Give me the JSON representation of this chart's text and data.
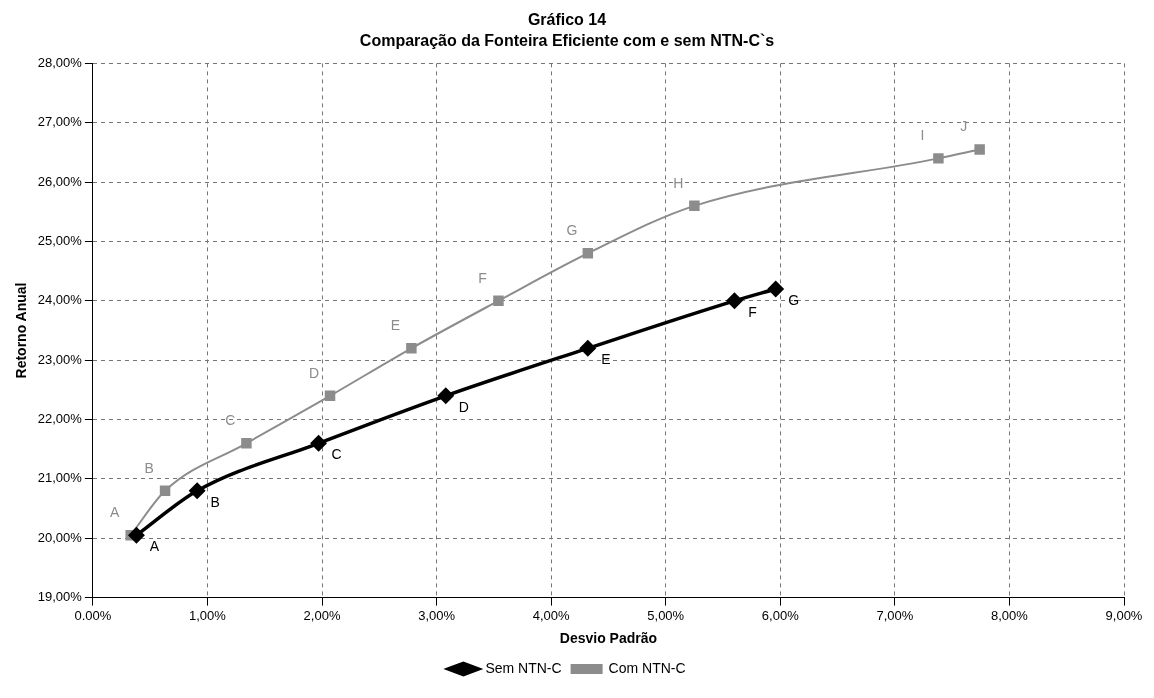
{
  "chart_data": {
    "type": "line",
    "title": "Gráfico 14",
    "subtitle": "Comparação da Fonteira Eficiente com e sem NTN-C`s",
    "xlabel": "Desvio Padrão",
    "ylabel": "Retorno Anual",
    "series": [
      {
        "name": "Sem NTN-C",
        "color": "#000000",
        "marker": "diamond",
        "x": [
          0.38,
          0.91,
          1.97,
          3.08,
          4.32,
          5.6,
          5.96
        ],
        "values": [
          20.05,
          20.8,
          21.6,
          22.4,
          23.2,
          24.0,
          24.2
        ],
        "value_labels": [
          "A",
          "B",
          "C",
          "D",
          "E",
          "F",
          "G"
        ]
      },
      {
        "name": "Com NTN-C",
        "color": "#8c8c8c",
        "marker": "square",
        "x": [
          0.33,
          0.63,
          1.34,
          2.07,
          2.78,
          3.54,
          4.32,
          5.25,
          7.38,
          7.74
        ],
        "values": [
          20.05,
          20.8,
          21.6,
          22.4,
          23.2,
          24.0,
          24.8,
          25.6,
          26.4,
          26.55
        ],
        "value_labels": [
          "A",
          "B",
          "C",
          "D",
          "E",
          "F",
          "G",
          "H",
          "I",
          "J"
        ]
      }
    ],
    "xlim": [
      0,
      9
    ],
    "xticks": [
      {
        "value": 0,
        "label": "0.00%"
      },
      {
        "value": 1,
        "label": "1,00%"
      },
      {
        "value": 2,
        "label": "2,00%"
      },
      {
        "value": 3,
        "label": "3,00%"
      },
      {
        "value": 4,
        "label": "4,00%"
      },
      {
        "value": 5,
        "label": "5,00%"
      },
      {
        "value": 6,
        "label": "6,00%"
      },
      {
        "value": 7,
        "label": "7,00%"
      },
      {
        "value": 8,
        "label": "8,00%"
      },
      {
        "value": 9,
        "label": "9,00%"
      }
    ],
    "ylim": [
      19,
      28
    ],
    "yticks": [
      {
        "value": 19,
        "label": "19,00%"
      },
      {
        "value": 20,
        "label": "20,00%"
      },
      {
        "value": 21,
        "label": "21,00%"
      },
      {
        "value": 22,
        "label": "22,00%"
      },
      {
        "value": 23,
        "label": "23,00%"
      },
      {
        "value": 24,
        "label": "24,00%"
      },
      {
        "value": 25,
        "label": "25,00%"
      },
      {
        "value": 26,
        "label": "26,00%"
      },
      {
        "value": 27,
        "label": "27,00%"
      },
      {
        "value": 28,
        "label": "28,00%"
      }
    ],
    "grid": true,
    "legend": "bottom",
    "line_style": "solid"
  }
}
